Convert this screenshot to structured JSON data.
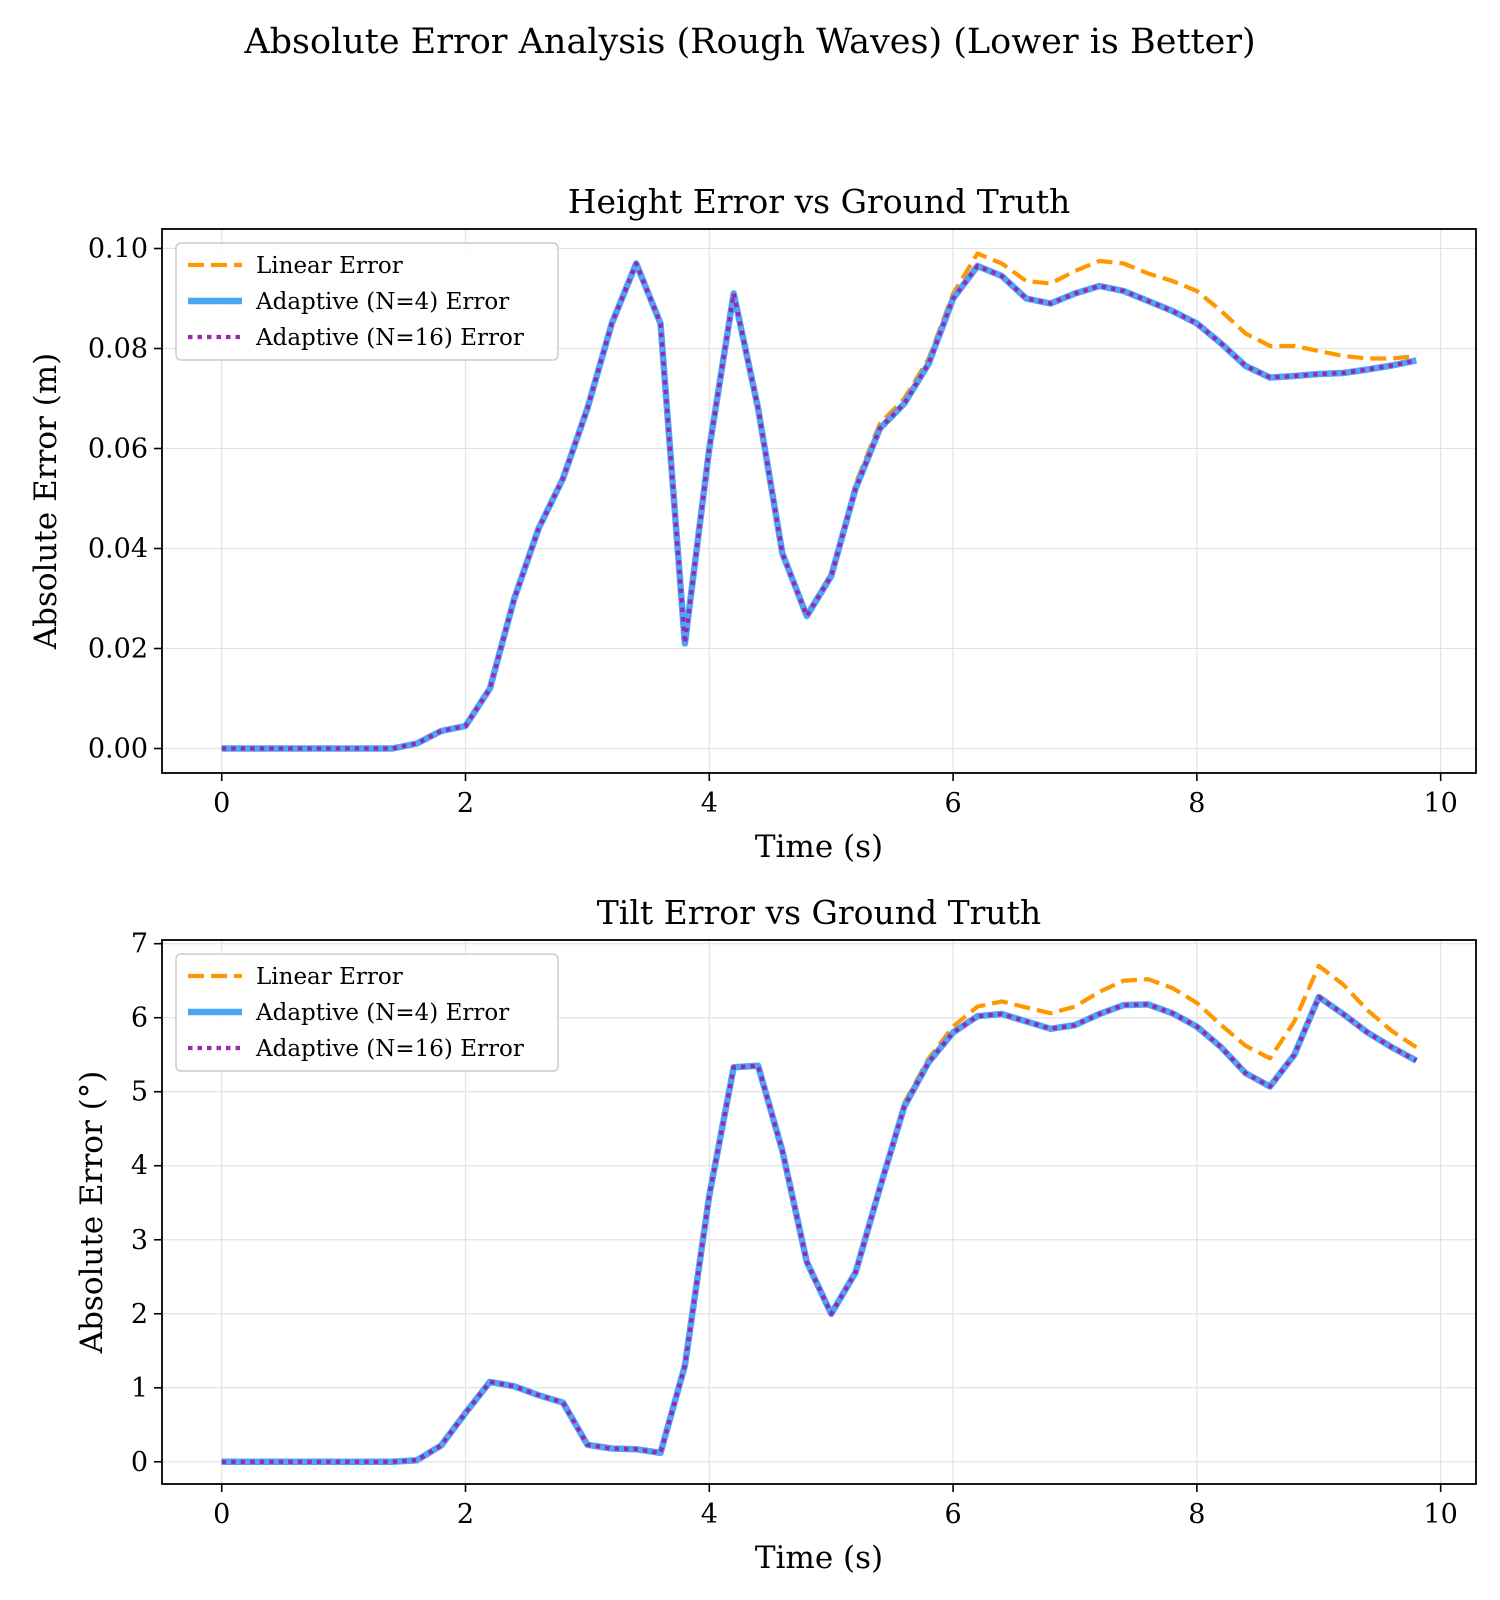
{
  "suptitle": "Absolute Error Analysis (Rough Waves) (Lower is Better)",
  "colors": {
    "linear": "#ff9800",
    "adaptive4": "#4da6f5",
    "adaptive16": "#9c27b0",
    "grid": "#e3e3e3"
  },
  "chart_data": [
    {
      "type": "line",
      "title": "Height Error vs Ground Truth",
      "xlabel": "Time (s)",
      "ylabel": "Absolute Error (m)",
      "xlim": [
        -0.49,
        10.29
      ],
      "ylim": [
        -0.0049,
        0.1039
      ],
      "xticks": [
        0,
        2,
        4,
        6,
        8,
        10
      ],
      "yticks": [
        0,
        0.02,
        0.04,
        0.06,
        0.08,
        0.1
      ],
      "ytick_labels": [
        "0.00",
        "0.02",
        "0.04",
        "0.06",
        "0.08",
        "0.10"
      ],
      "xtick_labels": [
        "0",
        "2",
        "4",
        "6",
        "8",
        "10"
      ],
      "grid": true,
      "legend": "upper left",
      "x": [
        0,
        0.2,
        0.4,
        0.6,
        0.8,
        1.0,
        1.2,
        1.4,
        1.6,
        1.8,
        2.0,
        2.2,
        2.4,
        2.6,
        2.8,
        3.0,
        3.2,
        3.4,
        3.6,
        3.8,
        4.0,
        4.2,
        4.4,
        4.6,
        4.8,
        5.0,
        5.2,
        5.4,
        5.6,
        5.8,
        6.0,
        6.2,
        6.4,
        6.6,
        6.8,
        7.0,
        7.2,
        7.4,
        7.6,
        7.8,
        8.0,
        8.2,
        8.4,
        8.6,
        8.8,
        9.0,
        9.2,
        9.4,
        9.6,
        9.8
      ],
      "series": [
        {
          "name": "Linear Error",
          "style": "dashed",
          "color_key": "linear",
          "values": [
            0,
            0,
            0,
            0,
            0,
            0,
            0,
            0,
            0.001,
            0.0035,
            0.0045,
            0.012,
            0.03,
            0.044,
            0.054,
            0.068,
            0.085,
            0.097,
            0.085,
            0.021,
            0.06,
            0.091,
            0.068,
            0.039,
            0.027,
            0.035,
            0.053,
            0.065,
            0.07,
            0.078,
            0.091,
            0.099,
            0.097,
            0.0935,
            0.093,
            0.0955,
            0.0975,
            0.097,
            0.095,
            0.0935,
            0.0915,
            0.0875,
            0.083,
            0.0805,
            0.0805,
            0.0795,
            0.0785,
            0.078,
            0.078,
            0.0785
          ]
        },
        {
          "name": "Adaptive (N=4) Error",
          "style": "solid",
          "color_key": "adaptive4",
          "values": [
            0,
            0,
            0,
            0,
            0,
            0,
            0,
            0,
            0.001,
            0.0035,
            0.0045,
            0.012,
            0.03,
            0.044,
            0.054,
            0.068,
            0.085,
            0.097,
            0.085,
            0.021,
            0.06,
            0.091,
            0.068,
            0.039,
            0.0265,
            0.0345,
            0.052,
            0.064,
            0.069,
            0.077,
            0.09,
            0.0965,
            0.0945,
            0.09,
            0.089,
            0.091,
            0.0925,
            0.0915,
            0.0895,
            0.0875,
            0.085,
            0.081,
            0.0765,
            0.0742,
            0.0745,
            0.0749,
            0.0751,
            0.0758,
            0.0766,
            0.0776
          ]
        },
        {
          "name": "Adaptive (N=16) Error",
          "style": "dotted",
          "color_key": "adaptive16",
          "values": [
            0,
            0,
            0,
            0,
            0,
            0,
            0,
            0,
            0.001,
            0.0035,
            0.0045,
            0.012,
            0.03,
            0.044,
            0.054,
            0.068,
            0.085,
            0.097,
            0.085,
            0.021,
            0.06,
            0.091,
            0.068,
            0.039,
            0.0265,
            0.0345,
            0.052,
            0.064,
            0.069,
            0.077,
            0.09,
            0.0965,
            0.0945,
            0.09,
            0.089,
            0.091,
            0.0925,
            0.0915,
            0.0895,
            0.0875,
            0.085,
            0.081,
            0.0765,
            0.0742,
            0.0745,
            0.0749,
            0.0751,
            0.0758,
            0.0766,
            0.0776
          ]
        }
      ]
    },
    {
      "type": "line",
      "title": "Tilt Error vs Ground Truth",
      "xlabel": "Time (s)",
      "ylabel": "Absolute Error (°)",
      "xlim": [
        -0.49,
        10.29
      ],
      "ylim": [
        -0.3,
        7.05
      ],
      "xticks": [
        0,
        2,
        4,
        6,
        8,
        10
      ],
      "yticks": [
        0,
        1,
        2,
        3,
        4,
        5,
        6,
        7
      ],
      "ytick_labels": [
        "0",
        "1",
        "2",
        "3",
        "4",
        "5",
        "6",
        "7"
      ],
      "xtick_labels": [
        "0",
        "2",
        "4",
        "6",
        "8",
        "10"
      ],
      "grid": true,
      "legend": "upper left",
      "x": [
        0,
        0.2,
        0.4,
        0.6,
        0.8,
        1.0,
        1.2,
        1.4,
        1.6,
        1.8,
        2.0,
        2.2,
        2.4,
        2.6,
        2.8,
        3.0,
        3.2,
        3.4,
        3.6,
        3.8,
        4.0,
        4.2,
        4.4,
        4.6,
        4.8,
        5.0,
        5.2,
        5.4,
        5.6,
        5.8,
        6.0,
        6.2,
        6.4,
        6.6,
        6.8,
        7.0,
        7.2,
        7.4,
        7.6,
        7.8,
        8.0,
        8.2,
        8.4,
        8.6,
        8.8,
        9.0,
        9.2,
        9.4,
        9.6,
        9.8
      ],
      "series": [
        {
          "name": "Linear Error",
          "style": "dashed",
          "color_key": "linear",
          "values": [
            0,
            0,
            0,
            0,
            0,
            0,
            0,
            0,
            0.02,
            0.22,
            0.66,
            1.08,
            1.02,
            0.9,
            0.8,
            0.23,
            0.18,
            0.17,
            0.12,
            1.3,
            3.6,
            5.33,
            5.35,
            4.2,
            2.7,
            2.0,
            2.56,
            3.7,
            4.85,
            5.45,
            5.88,
            6.15,
            6.22,
            6.14,
            6.06,
            6.15,
            6.35,
            6.5,
            6.52,
            6.4,
            6.2,
            5.9,
            5.62,
            5.45,
            5.95,
            6.7,
            6.45,
            6.1,
            5.82,
            5.6
          ]
        },
        {
          "name": "Adaptive (N=4) Error",
          "style": "solid",
          "color_key": "adaptive4",
          "values": [
            0,
            0,
            0,
            0,
            0,
            0,
            0,
            0,
            0.02,
            0.22,
            0.66,
            1.08,
            1.02,
            0.9,
            0.8,
            0.23,
            0.18,
            0.17,
            0.12,
            1.3,
            3.6,
            5.33,
            5.35,
            4.2,
            2.7,
            2.0,
            2.56,
            3.7,
            4.8,
            5.4,
            5.8,
            6.02,
            6.05,
            5.95,
            5.85,
            5.9,
            6.05,
            6.17,
            6.18,
            6.06,
            5.88,
            5.6,
            5.25,
            5.07,
            5.5,
            6.28,
            6.05,
            5.8,
            5.6,
            5.42
          ]
        },
        {
          "name": "Adaptive (N=16) Error",
          "style": "dotted",
          "color_key": "adaptive16",
          "values": [
            0,
            0,
            0,
            0,
            0,
            0,
            0,
            0,
            0.02,
            0.22,
            0.66,
            1.08,
            1.02,
            0.9,
            0.8,
            0.23,
            0.18,
            0.17,
            0.12,
            1.3,
            3.6,
            5.33,
            5.35,
            4.2,
            2.7,
            2.0,
            2.56,
            3.7,
            4.8,
            5.4,
            5.8,
            6.02,
            6.05,
            5.95,
            5.85,
            5.9,
            6.05,
            6.17,
            6.18,
            6.06,
            5.88,
            5.6,
            5.25,
            5.07,
            5.5,
            6.28,
            6.05,
            5.8,
            5.6,
            5.42
          ]
        }
      ]
    }
  ]
}
